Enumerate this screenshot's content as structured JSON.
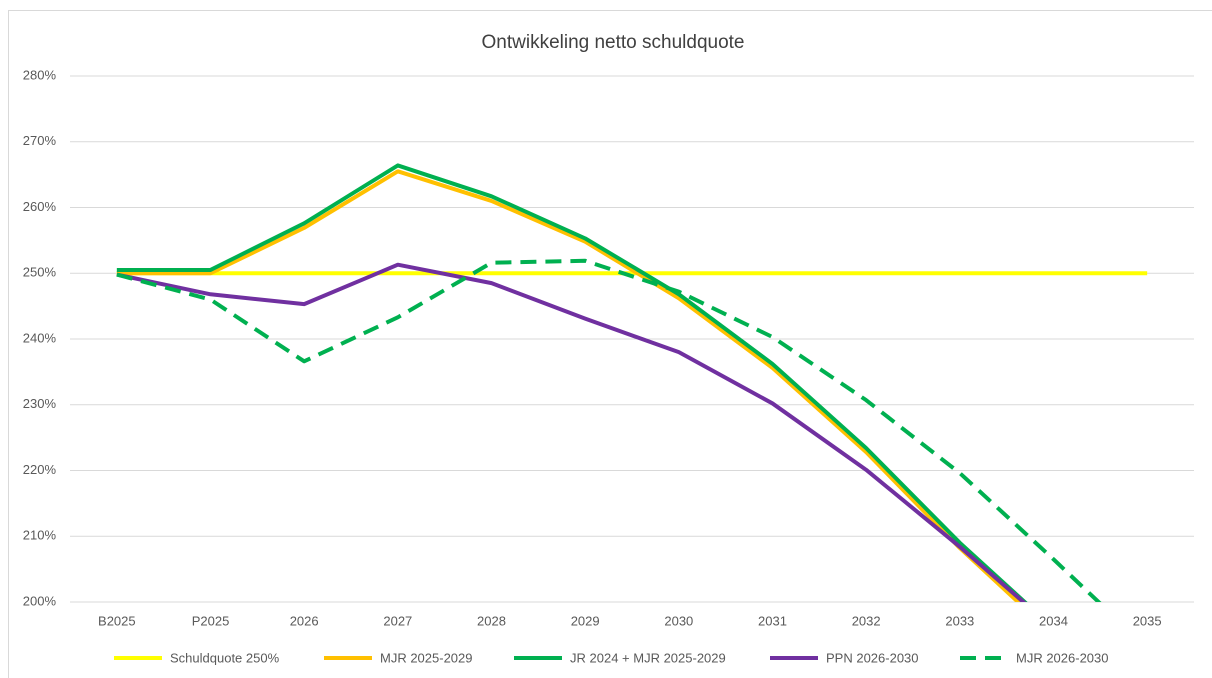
{
  "chart_data": {
    "type": "line",
    "title": "Ontwikkeling netto schuldquote",
    "categories": [
      "B2025",
      "P2025",
      "2026",
      "2027",
      "2028",
      "2029",
      "2030",
      "2031",
      "2032",
      "2033",
      "2034",
      "2035"
    ],
    "series": [
      {
        "name": "Schuldquote 250%",
        "color": "#ffff00",
        "dashed": false,
        "values": [
          250,
          250,
          250,
          250,
          250,
          250,
          250,
          250,
          250,
          250,
          250,
          250
        ]
      },
      {
        "name": "MJR 2025-2029",
        "color": "#ffc000",
        "dashed": false,
        "values": [
          250,
          250,
          256.9,
          265.5,
          261,
          254.8,
          246.2,
          235.6,
          222.8,
          208.2,
          195,
          null
        ]
      },
      {
        "name": "JR 2024 + MJR 2025-2029",
        "color": "#00b050",
        "dashed": false,
        "values": [
          250.5,
          250.5,
          257.6,
          266.4,
          261.7,
          255.3,
          246.8,
          236.2,
          223.4,
          209,
          196,
          null
        ]
      },
      {
        "name": "PPN 2026-2030",
        "color": "#7030a0",
        "dashed": false,
        "values": [
          249.8,
          246.8,
          245.3,
          251.3,
          248.5,
          243.1,
          238,
          230.2,
          220.1,
          208.4,
          196,
          null
        ]
      },
      {
        "name": "MJR 2026-2030",
        "color": "#00b050",
        "dashed": true,
        "values": [
          249.8,
          246,
          236.6,
          243.3,
          251.6,
          251.9,
          247.2,
          240.3,
          230.7,
          219.6,
          206.5,
          193
        ]
      }
    ],
    "ylim": [
      200,
      280
    ],
    "yticks": [
      {
        "value": 200,
        "label": "200%"
      },
      {
        "value": 210,
        "label": "210%"
      },
      {
        "value": 220,
        "label": "220%"
      },
      {
        "value": 230,
        "label": "230%"
      },
      {
        "value": 240,
        "label": "240%"
      },
      {
        "value": 250,
        "label": "250%"
      },
      {
        "value": 260,
        "label": "260%"
      },
      {
        "value": 270,
        "label": "270%"
      },
      {
        "value": 280,
        "label": "280%"
      }
    ],
    "grid": true,
    "legend": "bottom"
  }
}
